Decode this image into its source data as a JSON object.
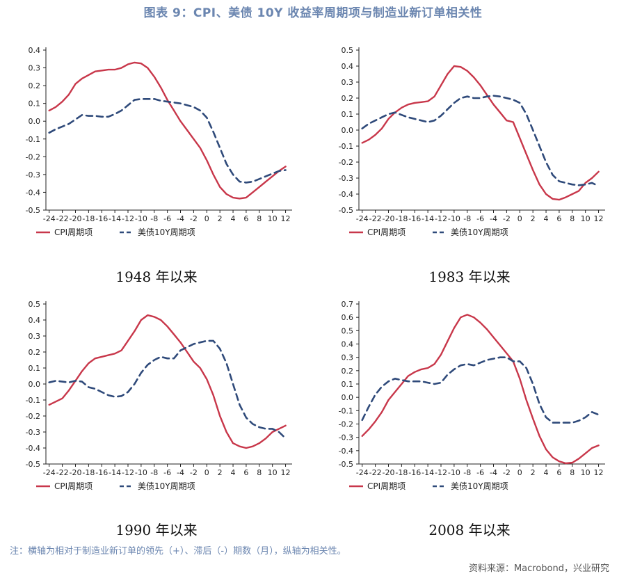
{
  "title": "图表 9：CPI、美债 10Y 收益率周期项与制造业新订单相关性",
  "note": "注：横轴为相对于制造业新订单的领先（+）、滞后（-）期数（月），纵轴为相关性。",
  "source": "资料来源：Macrobond，兴业研究",
  "colors": {
    "cpi": "#c8374a",
    "bond": "#2f4a7a"
  },
  "chart_data": [
    {
      "type": "line",
      "caption": "1948 年以来",
      "x": [
        -24,
        -23,
        -22,
        -21,
        -20,
        -19,
        -18,
        -17,
        -16,
        -15,
        -14,
        -13,
        -12,
        -11,
        -10,
        -9,
        -8,
        -7,
        -6,
        -5,
        -4,
        -3,
        -2,
        -1,
        0,
        1,
        2,
        3,
        4,
        5,
        6,
        7,
        8,
        9,
        10,
        11,
        12,
        13
      ],
      "xticks": [
        -24,
        -22,
        -20,
        -18,
        -16,
        -14,
        -12,
        -10,
        -8,
        -6,
        -4,
        -2,
        0,
        2,
        4,
        6,
        8,
        10,
        12
      ],
      "ylim": [
        -0.5,
        0.4
      ],
      "yticks": [
        -0.5,
        -0.4,
        -0.3,
        -0.2,
        -0.1,
        0.0,
        0.1,
        0.2,
        0.3,
        0.4
      ],
      "series": [
        {
          "name": "CPI周期项",
          "style": "solid",
          "values": [
            0.06,
            0.08,
            0.11,
            0.15,
            0.21,
            0.24,
            0.26,
            0.28,
            0.285,
            0.29,
            0.29,
            0.3,
            0.32,
            0.33,
            0.325,
            0.3,
            0.25,
            0.19,
            0.12,
            0.06,
            0.0,
            -0.05,
            -0.1,
            -0.15,
            -0.22,
            -0.3,
            -0.37,
            -0.41,
            -0.43,
            -0.435,
            -0.43,
            -0.4,
            -0.37,
            -0.34,
            -0.31,
            -0.28,
            -0.255,
            null
          ]
        },
        {
          "name": "美债10Y周期项",
          "style": "dashed",
          "values": [
            -0.065,
            -0.045,
            -0.03,
            -0.015,
            0.01,
            0.035,
            0.03,
            0.03,
            0.025,
            0.025,
            0.04,
            0.06,
            0.09,
            0.12,
            0.125,
            0.125,
            0.125,
            0.115,
            0.11,
            0.105,
            0.1,
            0.09,
            0.08,
            0.06,
            0.02,
            -0.06,
            -0.15,
            -0.24,
            -0.3,
            -0.34,
            -0.345,
            -0.34,
            -0.325,
            -0.31,
            -0.295,
            -0.28,
            -0.275,
            null
          ]
        }
      ]
    },
    {
      "type": "line",
      "caption": "1983 年以来",
      "x": [
        -24,
        -23,
        -22,
        -21,
        -20,
        -19,
        -18,
        -17,
        -16,
        -15,
        -14,
        -13,
        -12,
        -11,
        -10,
        -9,
        -8,
        -7,
        -6,
        -5,
        -4,
        -3,
        -2,
        -1,
        0,
        1,
        2,
        3,
        4,
        5,
        6,
        7,
        8,
        9,
        10,
        11,
        12,
        13
      ],
      "xticks": [
        -24,
        -22,
        -20,
        -18,
        -16,
        -14,
        -12,
        -10,
        -8,
        -6,
        -4,
        -2,
        0,
        2,
        4,
        6,
        8,
        10,
        12
      ],
      "ylim": [
        -0.5,
        0.5
      ],
      "yticks": [
        -0.5,
        -0.4,
        -0.3,
        -0.2,
        -0.1,
        0.0,
        0.1,
        0.2,
        0.3,
        0.4,
        0.5
      ],
      "series": [
        {
          "name": "CPI周期项",
          "style": "solid",
          "values": [
            -0.08,
            -0.06,
            -0.03,
            0.01,
            0.07,
            0.11,
            0.14,
            0.16,
            0.17,
            0.175,
            0.18,
            0.21,
            0.28,
            0.35,
            0.4,
            0.395,
            0.37,
            0.33,
            0.28,
            0.22,
            0.16,
            0.11,
            0.06,
            0.05,
            -0.05,
            -0.15,
            -0.25,
            -0.34,
            -0.4,
            -0.43,
            -0.435,
            -0.42,
            -0.4,
            -0.38,
            -0.33,
            -0.3,
            -0.26,
            null
          ]
        },
        {
          "name": "美债10Y周期项",
          "style": "dashed",
          "values": [
            0.01,
            0.04,
            0.06,
            0.08,
            0.1,
            0.11,
            0.095,
            0.08,
            0.07,
            0.06,
            0.05,
            0.06,
            0.09,
            0.13,
            0.17,
            0.2,
            0.21,
            0.2,
            0.2,
            0.21,
            0.215,
            0.21,
            0.2,
            0.19,
            0.17,
            0.1,
            0.0,
            -0.1,
            -0.2,
            -0.28,
            -0.32,
            -0.33,
            -0.34,
            -0.345,
            -0.34,
            -0.33,
            -0.35,
            null
          ]
        }
      ]
    },
    {
      "type": "line",
      "caption": "1990 年以来",
      "x": [
        -24,
        -23,
        -22,
        -21,
        -20,
        -19,
        -18,
        -17,
        -16,
        -15,
        -14,
        -13,
        -12,
        -11,
        -10,
        -9,
        -8,
        -7,
        -6,
        -5,
        -4,
        -3,
        -2,
        -1,
        0,
        1,
        2,
        3,
        4,
        5,
        6,
        7,
        8,
        9,
        10,
        11,
        12,
        13
      ],
      "xticks": [
        -24,
        -22,
        -20,
        -18,
        -16,
        -14,
        -12,
        -10,
        -8,
        -6,
        -4,
        -2,
        0,
        2,
        4,
        6,
        8,
        10,
        12
      ],
      "ylim": [
        -0.5,
        0.5
      ],
      "yticks": [
        -0.5,
        -0.4,
        -0.3,
        -0.2,
        -0.1,
        0.0,
        0.1,
        0.2,
        0.3,
        0.4,
        0.5
      ],
      "series": [
        {
          "name": "CPI周期项",
          "style": "solid",
          "values": [
            -0.13,
            -0.11,
            -0.09,
            -0.04,
            0.02,
            0.08,
            0.13,
            0.16,
            0.17,
            0.18,
            0.19,
            0.21,
            0.27,
            0.33,
            0.4,
            0.43,
            0.42,
            0.4,
            0.36,
            0.31,
            0.26,
            0.2,
            0.14,
            0.1,
            0.03,
            -0.07,
            -0.2,
            -0.3,
            -0.37,
            -0.39,
            -0.4,
            -0.39,
            -0.37,
            -0.34,
            -0.3,
            -0.28,
            -0.26,
            null
          ]
        },
        {
          "name": "美债10Y周期项",
          "style": "dashed",
          "values": [
            0.01,
            0.02,
            0.015,
            0.01,
            0.02,
            0.015,
            -0.02,
            -0.03,
            -0.05,
            -0.07,
            -0.08,
            -0.075,
            -0.05,
            0.0,
            0.07,
            0.12,
            0.15,
            0.17,
            0.16,
            0.16,
            0.21,
            0.23,
            0.25,
            0.26,
            0.27,
            0.27,
            0.22,
            0.13,
            0.0,
            -0.13,
            -0.21,
            -0.25,
            -0.27,
            -0.28,
            -0.28,
            -0.3,
            -0.34,
            null
          ]
        }
      ]
    },
    {
      "type": "line",
      "caption": "2008 年以来",
      "x": [
        -24,
        -23,
        -22,
        -21,
        -20,
        -19,
        -18,
        -17,
        -16,
        -15,
        -14,
        -13,
        -12,
        -11,
        -10,
        -9,
        -8,
        -7,
        -6,
        -5,
        -4,
        -3,
        -2,
        -1,
        0,
        1,
        2,
        3,
        4,
        5,
        6,
        7,
        8,
        9,
        10,
        11,
        12,
        13
      ],
      "xticks": [
        -24,
        -22,
        -20,
        -18,
        -16,
        -14,
        -12,
        -10,
        -8,
        -6,
        -4,
        -2,
        0,
        2,
        4,
        6,
        8,
        10,
        12
      ],
      "ylim": [
        -0.5,
        0.7
      ],
      "yticks": [
        -0.5,
        -0.4,
        -0.3,
        -0.2,
        -0.1,
        0.0,
        0.1,
        0.2,
        0.3,
        0.4,
        0.5,
        0.6,
        0.7
      ],
      "series": [
        {
          "name": "CPI周期项",
          "style": "solid",
          "values": [
            -0.29,
            -0.24,
            -0.18,
            -0.11,
            -0.02,
            0.04,
            0.1,
            0.16,
            0.19,
            0.21,
            0.22,
            0.25,
            0.32,
            0.42,
            0.52,
            0.6,
            0.62,
            0.6,
            0.56,
            0.51,
            0.45,
            0.39,
            0.33,
            0.27,
            0.14,
            -0.02,
            -0.16,
            -0.29,
            -0.39,
            -0.45,
            -0.48,
            -0.495,
            -0.49,
            -0.46,
            -0.42,
            -0.38,
            -0.36,
            null
          ]
        },
        {
          "name": "美债10Y周期项",
          "style": "dashed",
          "values": [
            -0.17,
            -0.07,
            0.02,
            0.08,
            0.12,
            0.14,
            0.13,
            0.12,
            0.12,
            0.12,
            0.11,
            0.1,
            0.11,
            0.17,
            0.21,
            0.24,
            0.25,
            0.24,
            0.26,
            0.28,
            0.29,
            0.3,
            0.3,
            0.27,
            0.27,
            0.22,
            0.1,
            -0.05,
            -0.15,
            -0.19,
            -0.19,
            -0.19,
            -0.19,
            -0.175,
            -0.15,
            -0.11,
            -0.13,
            null
          ]
        }
      ]
    }
  ]
}
